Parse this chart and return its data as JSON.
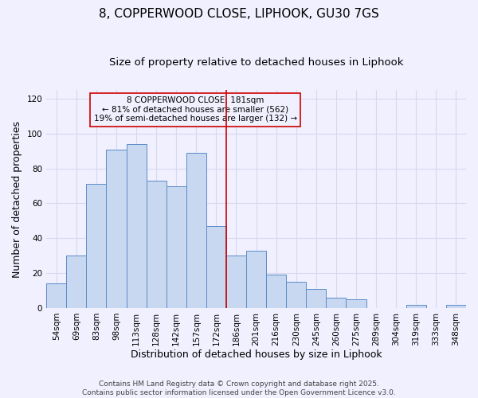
{
  "title": "8, COPPERWOOD CLOSE, LIPHOOK, GU30 7GS",
  "subtitle": "Size of property relative to detached houses in Liphook",
  "xlabel": "Distribution of detached houses by size in Liphook",
  "ylabel": "Number of detached properties",
  "categories": [
    "54sqm",
    "69sqm",
    "83sqm",
    "98sqm",
    "113sqm",
    "128sqm",
    "142sqm",
    "157sqm",
    "172sqm",
    "186sqm",
    "201sqm",
    "216sqm",
    "230sqm",
    "245sqm",
    "260sqm",
    "275sqm",
    "289sqm",
    "304sqm",
    "319sqm",
    "333sqm",
    "348sqm"
  ],
  "values": [
    14,
    30,
    71,
    91,
    94,
    73,
    70,
    89,
    47,
    30,
    33,
    19,
    15,
    11,
    6,
    5,
    0,
    0,
    2,
    0,
    2
  ],
  "bar_color": "#c8d8f0",
  "bar_edge_color": "#5b8cc8",
  "property_line_color": "#cc0000",
  "annotation_box_text": "8 COPPERWOOD CLOSE: 181sqm\n← 81% of detached houses are smaller (562)\n19% of semi-detached houses are larger (132) →",
  "annotation_box_color": "#cc0000",
  "ylim": [
    0,
    125
  ],
  "yticks": [
    0,
    20,
    40,
    60,
    80,
    100,
    120
  ],
  "footer_line1": "Contains HM Land Registry data © Crown copyright and database right 2025.",
  "footer_line2": "Contains public sector information licensed under the Open Government Licence v3.0.",
  "background_color": "#f0f0ff",
  "grid_color": "#d8d8ee",
  "title_fontsize": 11,
  "subtitle_fontsize": 9.5,
  "label_fontsize": 9,
  "tick_fontsize": 7.5,
  "footer_fontsize": 6.5,
  "annotation_fontsize": 7.5
}
